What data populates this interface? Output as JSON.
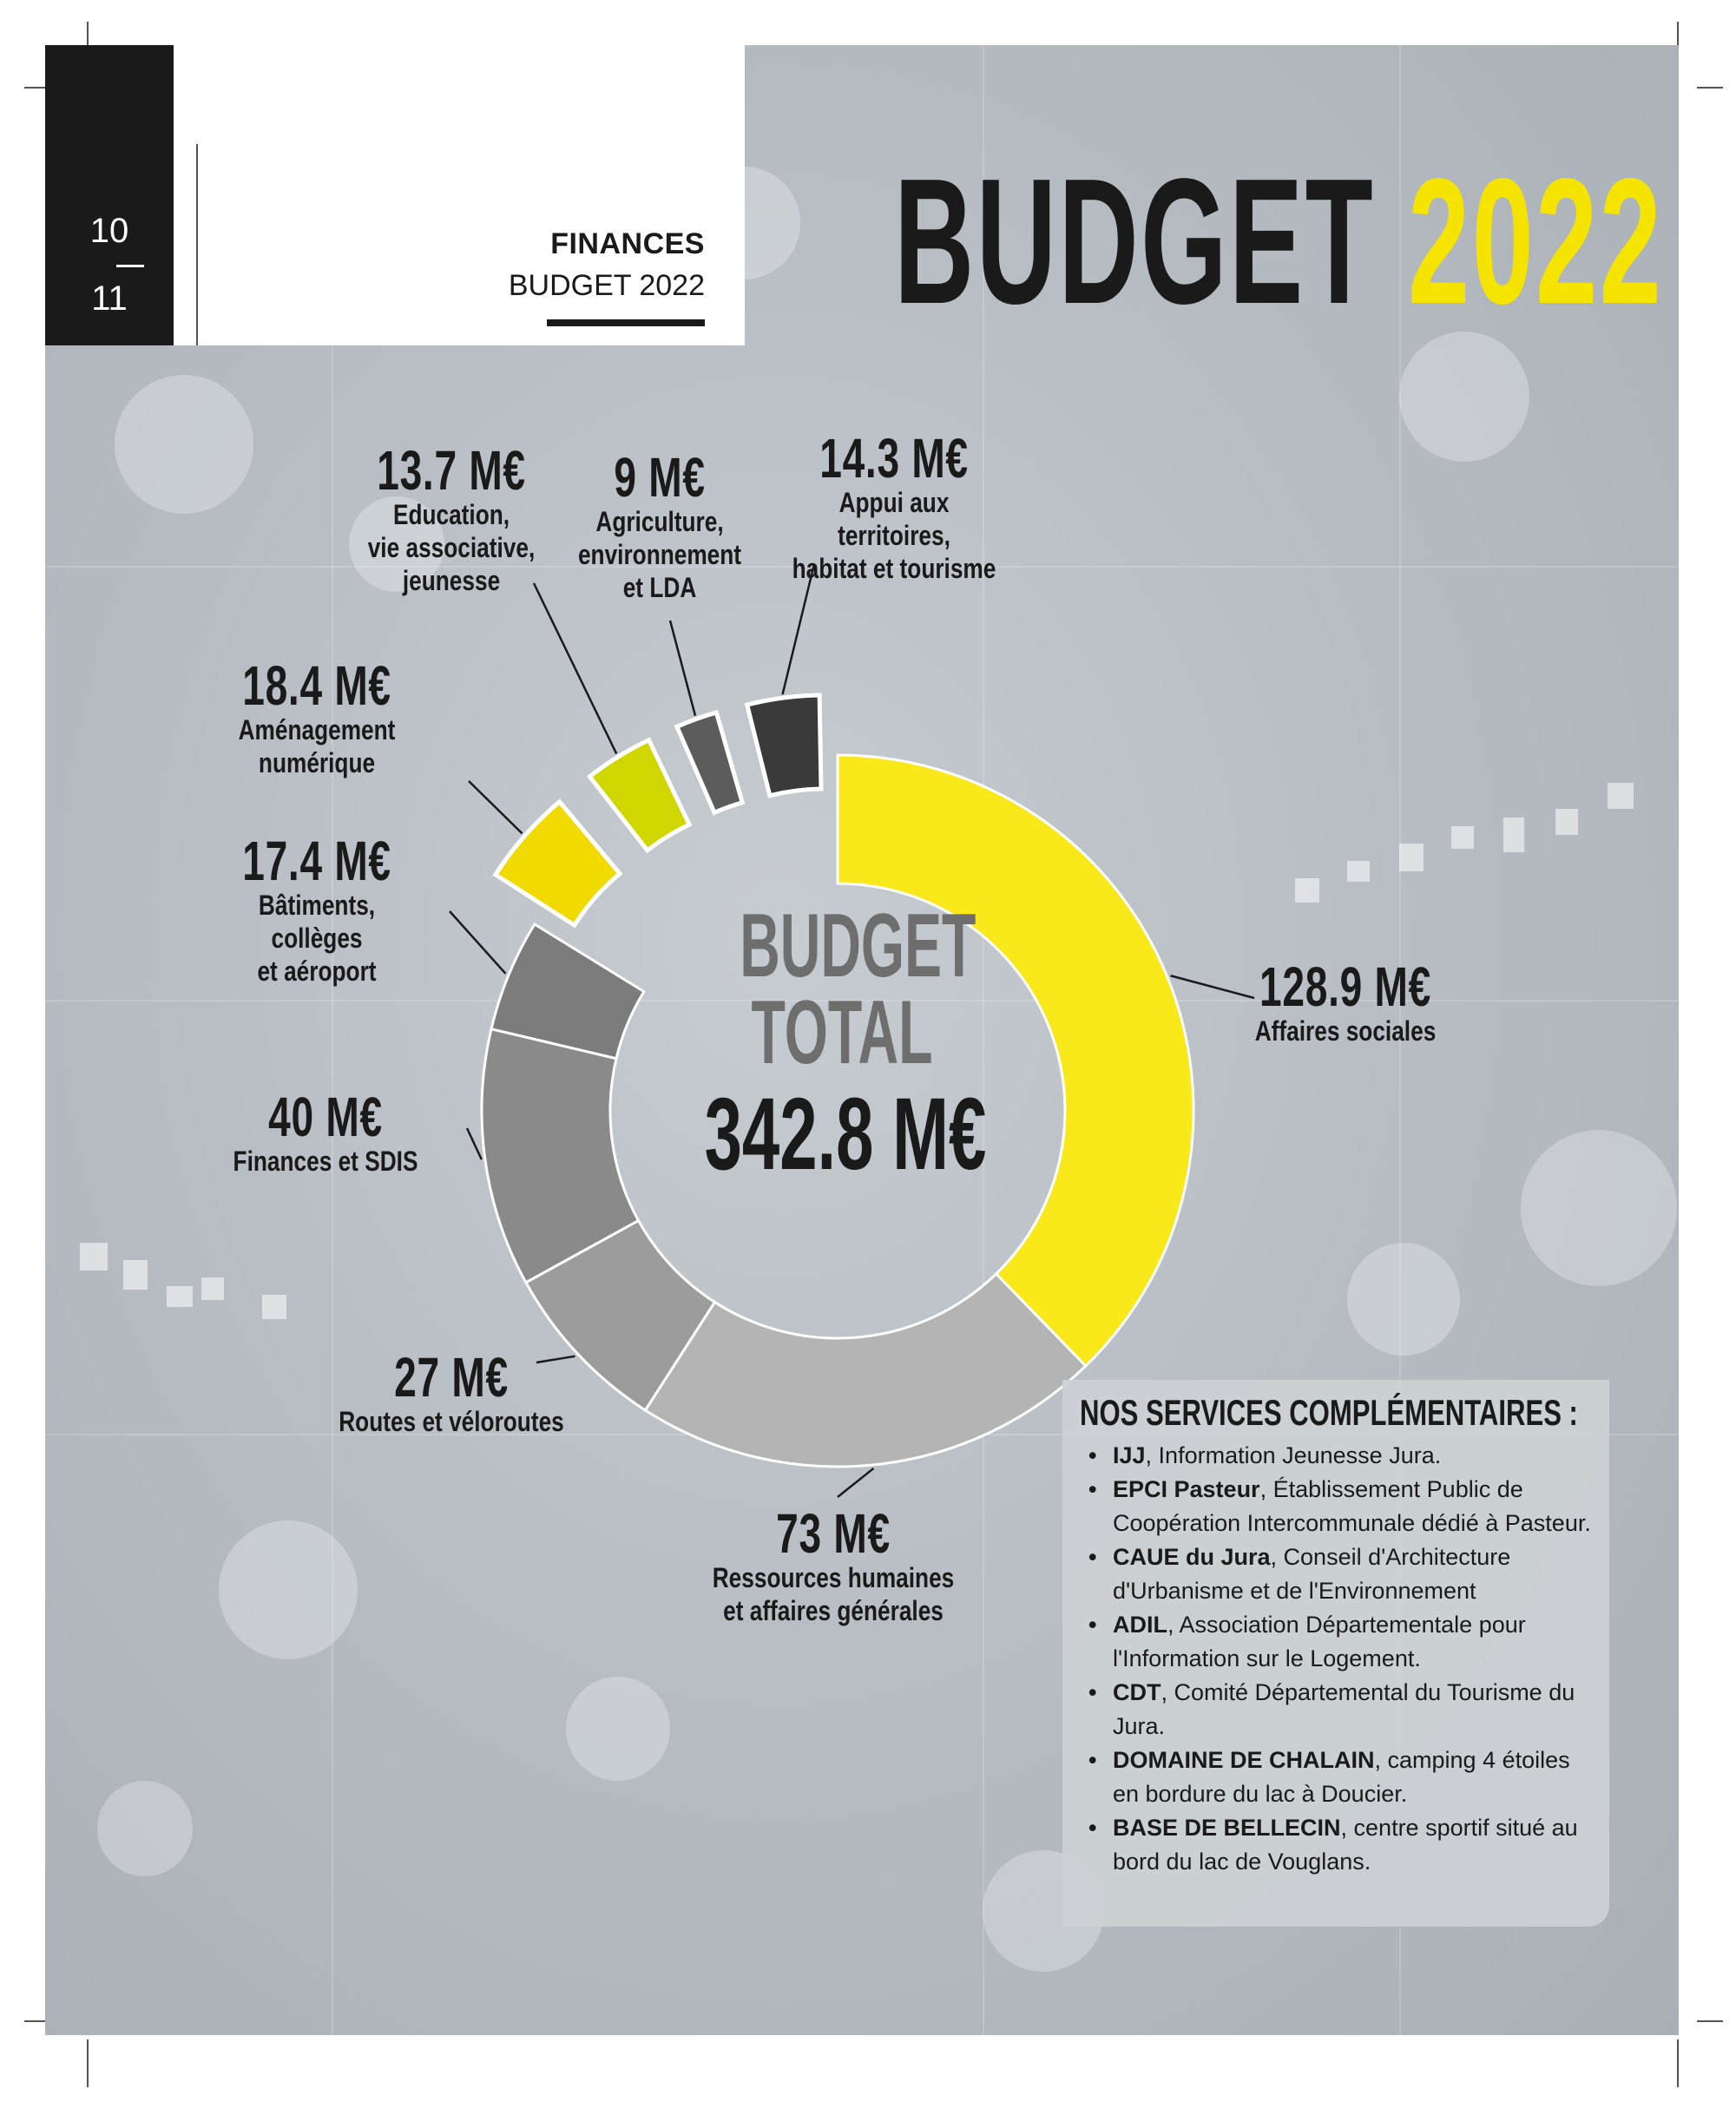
{
  "page": {
    "page_numbers": [
      "10",
      "11"
    ],
    "section": "FINANCES",
    "subsection": "BUDGET 2022",
    "title_word": "BUDGET",
    "title_year": "2022"
  },
  "colors": {
    "accent_yellow": "#f5e400",
    "dark": "#1a1a1a"
  },
  "center": {
    "line1": "BUDGET",
    "line2": "TOTAL",
    "total": "342.8 M€"
  },
  "chart_data": {
    "type": "pie",
    "variant": "donut",
    "unit": "M€",
    "total": 342.8,
    "slices": [
      {
        "label": "Affaires sociales",
        "value": 128.9,
        "value_label": "128.9 M€",
        "color": "#f9e81a"
      },
      {
        "label": "Ressources humaines et affaires générales",
        "value": 73,
        "value_label": "73 M€",
        "color": "#b4b4b4"
      },
      {
        "label": "Routes et véloroutes",
        "value": 27,
        "value_label": "27 M€",
        "color": "#9c9c9c"
      },
      {
        "label": "Finances et SDIS",
        "value": 40,
        "value_label": "40 M€",
        "color": "#8a8a8a"
      },
      {
        "label": "Bâtiments, collèges et aéroport",
        "value": 17.4,
        "value_label": "17.4 M€",
        "color": "#7c7c7c"
      },
      {
        "label": "Aménagement numérique",
        "value": 18.4,
        "value_label": "18.4 M€",
        "color": "#f0da00",
        "exploded": true
      },
      {
        "label": "Education, vie associative, jeunesse",
        "value": 13.7,
        "value_label": "13.7 M€",
        "color": "#cfd600",
        "exploded": true
      },
      {
        "label": "Agriculture, environnement et LDA",
        "value": 9,
        "value_label": "9 M€",
        "color": "#5c5c5c",
        "exploded": true
      },
      {
        "label": "Appui aux territoires, habitat et tourisme",
        "value": 14.3,
        "value_label": "14.3 M€",
        "color": "#3a3a3a",
        "exploded": true
      }
    ]
  },
  "labels": {
    "affaires_sociales": {
      "value": "128.9 M€",
      "caption": "Affaires sociales"
    },
    "rh": {
      "value": "73 M€",
      "caption": "Ressources humaines\net affaires générales"
    },
    "routes": {
      "value": "27 M€",
      "caption": "Routes et véloroutes"
    },
    "finances": {
      "value": "40 M€",
      "caption": "Finances et SDIS"
    },
    "batiments": {
      "value": "17.4 M€",
      "caption": "Bâtiments, collèges\net aéroport"
    },
    "numerique": {
      "value": "18.4 M€",
      "caption": "Aménagement numérique"
    },
    "education": {
      "value": "13.7 M€",
      "caption": "Education,\nvie associative,\njeunesse"
    },
    "agriculture": {
      "value": "9 M€",
      "caption": "Agriculture,\nenvironnement\net LDA"
    },
    "territoires": {
      "value": "14.3 M€",
      "caption": "Appui aux territoires,\nhabitat et tourisme"
    }
  },
  "services": {
    "title": "NOS SERVICES COMPLÉMENTAIRES :",
    "items": [
      {
        "name": "IJJ",
        "desc": ", Information Jeunesse Jura."
      },
      {
        "name": "EPCI Pasteur",
        "desc": ", Établissement Public de Coopération Intercommunale dédié à Pasteur."
      },
      {
        "name": "CAUE du Jura",
        "desc": ", Conseil d'Architecture d'Urbanisme et de l'Environnement"
      },
      {
        "name": "ADIL",
        "desc": ", Association Départementale pour l'Information sur le Logement."
      },
      {
        "name": "CDT",
        "desc": ", Comité Départemental du Tourisme du Jura."
      },
      {
        "name": "DOMAINE DE CHALAIN",
        "desc": ", camping 4 étoiles en bordure du lac à Doucier."
      },
      {
        "name": "BASE DE BELLECIN",
        "desc": ", centre sportif situé au bord du lac de Vouglans."
      }
    ]
  }
}
